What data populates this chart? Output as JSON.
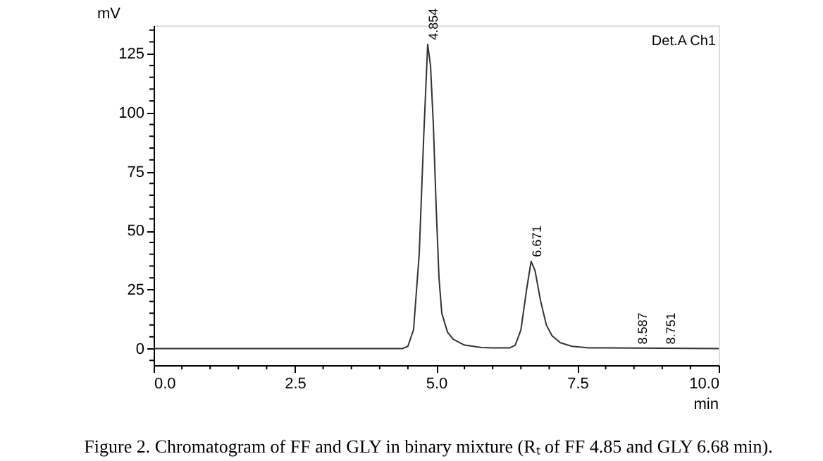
{
  "chart_data": {
    "type": "line",
    "xlabel": "min",
    "ylabel": "mV",
    "x": [
      0,
      3.7,
      4.4,
      4.5,
      4.6,
      4.7,
      4.78,
      4.85,
      4.9,
      4.95,
      5.0,
      5.05,
      5.1,
      5.2,
      5.3,
      5.5,
      5.8,
      6.0,
      6.3,
      6.4,
      6.5,
      6.6,
      6.68,
      6.75,
      6.85,
      6.95,
      7.05,
      7.2,
      7.4,
      7.7,
      8.0,
      10.0
    ],
    "series": [
      {
        "color": "#333333",
        "values": [
          0,
          0,
          0,
          1,
          8,
          40,
          90,
          129,
          120,
          95,
          60,
          30,
          15,
          7,
          4,
          1.5,
          0.5,
          0.3,
          0.3,
          1.5,
          8,
          25,
          37,
          33,
          20,
          10,
          5.5,
          2.5,
          1,
          0.3,
          0.3,
          0
        ]
      }
    ],
    "xlim": [
      0,
      10
    ],
    "ylim": [
      -7,
      137
    ],
    "xticks": [
      {
        "value": 0,
        "label": "0.0"
      },
      {
        "value": 0.5,
        "label": null
      },
      {
        "value": 1.0,
        "label": null
      },
      {
        "value": 1.5,
        "label": null
      },
      {
        "value": 2.0,
        "label": null
      },
      {
        "value": 2.5,
        "label": "2.5"
      },
      {
        "value": 3.0,
        "label": null
      },
      {
        "value": 3.5,
        "label": null
      },
      {
        "value": 4.0,
        "label": null
      },
      {
        "value": 4.5,
        "label": null
      },
      {
        "value": 5,
        "label": "5.0"
      },
      {
        "value": 5.5,
        "label": null
      },
      {
        "value": 6.0,
        "label": null
      },
      {
        "value": 6.5,
        "label": null
      },
      {
        "value": 7.0,
        "label": null
      },
      {
        "value": 7.5,
        "label": "7.5"
      },
      {
        "value": 8.0,
        "label": null
      },
      {
        "value": 8.5,
        "label": null
      },
      {
        "value": 9.0,
        "label": null
      },
      {
        "value": 9.5,
        "label": null
      },
      {
        "value": 10,
        "label": "10.0"
      }
    ],
    "yticks": [
      {
        "value": -5,
        "label": null
      },
      0,
      {
        "value": 5,
        "label": null
      },
      {
        "value": 10,
        "label": null
      },
      {
        "value": 15,
        "label": null
      },
      {
        "value": 20,
        "label": null
      },
      25,
      {
        "value": 30,
        "label": null
      },
      {
        "value": 35,
        "label": null
      },
      {
        "value": 40,
        "label": null
      },
      {
        "value": 45,
        "label": null
      },
      50,
      {
        "value": 55,
        "label": null
      },
      {
        "value": 60,
        "label": null
      },
      {
        "value": 65,
        "label": null
      },
      {
        "value": 70,
        "label": null
      },
      75,
      {
        "value": 80,
        "label": null
      },
      {
        "value": 85,
        "label": null
      },
      {
        "value": 90,
        "label": null
      },
      {
        "value": 95,
        "label": null
      },
      100,
      {
        "value": 105,
        "label": null
      },
      {
        "value": 110,
        "label": null
      },
      {
        "value": 115,
        "label": null
      },
      {
        "value": 120,
        "label": null
      },
      125,
      {
        "value": 130,
        "label": null
      },
      {
        "value": 135,
        "label": null
      }
    ],
    "grid": false,
    "marker": "none",
    "line_style": "solid",
    "annotations": [
      "Det.A Ch1",
      {
        "text": "4.854",
        "x": 4.85,
        "y": 129
      },
      {
        "text": "6.671",
        "x": 6.68,
        "y": 37
      },
      {
        "text": "8.587",
        "x": 8.55,
        "y": 0
      },
      {
        "text": "8.751",
        "x": 9.05,
        "y": 0
      },
      "Figure 2. Chromatogram of FF and GLY in binary mixture (Rₜ of FF 4.85 and GLY 6.68 min)."
    ]
  }
}
